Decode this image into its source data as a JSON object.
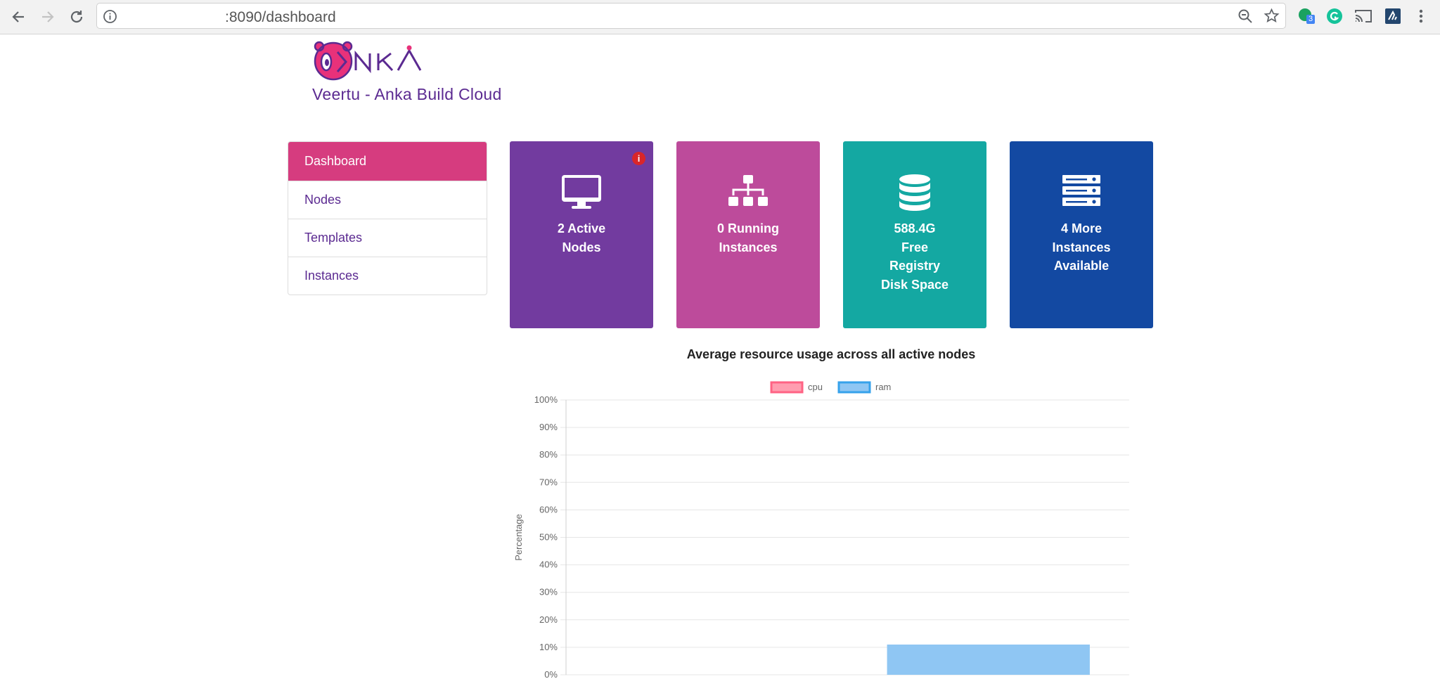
{
  "browser": {
    "url": ":8090/dashboard",
    "extension_badge": "3"
  },
  "header": {
    "logo_text": "ANKA",
    "title": "Veertu - Anka Build Cloud"
  },
  "sidebar": {
    "items": [
      {
        "label": "Dashboard",
        "active": true
      },
      {
        "label": "Nodes",
        "active": false
      },
      {
        "label": "Templates",
        "active": false
      },
      {
        "label": "Instances",
        "active": false
      }
    ]
  },
  "tiles": [
    {
      "icon": "monitor-icon",
      "label": "2 Active\nNodes",
      "color": "#723b9f",
      "badge": "i"
    },
    {
      "icon": "sitemap-icon",
      "label": "0 Running\nInstances",
      "color": "#bd4b9b"
    },
    {
      "icon": "database-icon",
      "label": "588.4G\nFree\nRegistry\nDisk Space",
      "color": "#14a8a2"
    },
    {
      "icon": "server-icon",
      "label": "4 More\nInstances\nAvailable",
      "color": "#1349a2"
    }
  ],
  "chart_data": {
    "type": "bar",
    "title": "Average resource usage across all active nodes",
    "ylabel": "Percentage",
    "ylim": [
      0,
      100
    ],
    "yticks": [
      "0%",
      "10%",
      "20%",
      "30%",
      "40%",
      "50%",
      "60%",
      "70%",
      "80%",
      "90%",
      "100%"
    ],
    "legend_position": "top",
    "grid": true,
    "series": [
      {
        "name": "cpu",
        "color": "#ff9db0",
        "border": "#ff6384",
        "value": 0
      },
      {
        "name": "ram",
        "color": "#8fc6f3",
        "border": "#36a2eb",
        "value": 11
      }
    ]
  }
}
